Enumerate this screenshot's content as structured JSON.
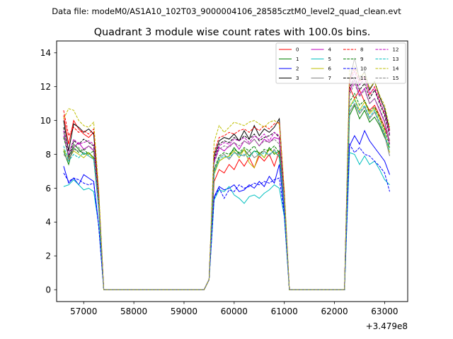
{
  "suptitle": "Data file: modeM0/AS1A10_102T03_9000004106_28585cztM0_level2_quad_clean.evt",
  "chart_data": {
    "type": "line",
    "title": "Quadrant 3 module wise count rates with 100.0s bins.",
    "xlabel": "",
    "ylabel": "",
    "x_offset_label": "+3.479e8",
    "xlim": [
      56460,
      63460
    ],
    "ylim": [
      -0.7,
      14.7
    ],
    "xticks": [
      57000,
      58000,
      59000,
      60000,
      61000,
      62000,
      63000
    ],
    "yticks": [
      0,
      2,
      4,
      6,
      8,
      10,
      12,
      14
    ],
    "legend_position": "top-right",
    "segments": [
      {
        "start": 56600,
        "n": 7
      },
      {
        "start": 57300,
        "n": 1
      },
      {
        "start": 57400,
        "n": 21
      },
      {
        "start": 59500,
        "n": 2
      },
      {
        "start": 59700,
        "n": 13
      },
      {
        "start": 61000,
        "n": 1
      },
      {
        "start": 61100,
        "n": 12
      },
      {
        "start": 62300,
        "n": 9
      }
    ],
    "series": [
      {
        "name": "0",
        "color": "#ff0000",
        "dash": "solid",
        "on": [
          10.3,
          8.6,
          10.0,
          9.5,
          9.2,
          9.0,
          9.3
        ],
        "dip": 5.5,
        "high2": [
          7.1,
          6.9,
          7.4,
          7.1,
          7.7,
          7.3,
          7.8,
          7.2,
          7.9,
          7.6,
          8.0,
          7.3,
          8.2
        ],
        "fall2": 5.1,
        "high3": [
          12.0,
          11.3,
          11.8,
          11.1,
          10.6,
          10.9,
          10.3,
          9.6,
          8.8
        ]
      },
      {
        "name": "1",
        "color": "#008000",
        "dash": "solid",
        "on": [
          8.2,
          7.4,
          8.6,
          8.3,
          8.0,
          8.1,
          7.8
        ],
        "dip": 4.9,
        "high2": [
          7.6,
          7.8,
          7.9,
          8.4,
          8.0,
          8.3,
          7.9,
          8.2,
          8.1,
          7.8,
          8.4,
          8.0,
          8.2
        ],
        "fall2": 5.0,
        "high3": [
          10.3,
          10.9,
          10.1,
          10.6,
          9.9,
          10.2,
          9.7,
          9.0,
          8.4
        ]
      },
      {
        "name": "2",
        "color": "#0000ff",
        "dash": "solid",
        "on": [
          7.3,
          6.3,
          6.6,
          6.2,
          6.8,
          6.6,
          6.4
        ],
        "dip": 3.8,
        "high2": [
          6.1,
          5.9,
          6.0,
          6.2,
          5.8,
          5.9,
          6.2,
          6.0,
          6.4,
          6.1,
          6.7,
          6.3,
          7.4
        ],
        "fall2": 4.6,
        "high3": [
          8.5,
          9.1,
          8.6,
          9.4,
          8.8,
          8.4,
          8.0,
          7.6,
          6.8
        ]
      },
      {
        "name": "3",
        "color": "#000000",
        "dash": "solid",
        "on": [
          10.0,
          8.2,
          9.8,
          9.6,
          9.3,
          9.5,
          9.2
        ],
        "dip": 5.6,
        "high2": [
          8.8,
          9.0,
          8.9,
          9.2,
          8.8,
          9.4,
          8.9,
          9.7,
          9.1,
          9.5,
          9.3,
          9.6,
          10.1
        ],
        "fall2": 5.6,
        "high3": [
          12.3,
          13.7,
          12.4,
          12.9,
          11.8,
          12.3,
          11.4,
          10.7,
          9.4
        ]
      },
      {
        "name": "4",
        "color": "#bf00bf",
        "dash": "solid",
        "on": [
          9.1,
          7.9,
          8.4,
          8.7,
          8.3,
          8.5,
          8.2
        ],
        "dip": 5.0,
        "high2": [
          8.4,
          8.2,
          8.5,
          8.7,
          8.3,
          8.8,
          8.6,
          8.9,
          8.5,
          8.9,
          8.7,
          9.0,
          8.9
        ],
        "fall2": 5.2,
        "high3": [
          11.7,
          12.4,
          11.5,
          11.9,
          11.0,
          11.3,
          10.6,
          9.9,
          8.6
        ]
      },
      {
        "name": "5",
        "color": "#00bfbf",
        "dash": "solid",
        "on": [
          6.1,
          6.2,
          6.5,
          6.2,
          5.9,
          6.0,
          5.8
        ],
        "dip": 3.8,
        "high2": [
          5.9,
          5.8,
          6.1,
          5.6,
          5.4,
          5.1,
          5.5,
          5.6,
          5.4,
          5.7,
          5.9,
          6.2,
          6.0
        ],
        "fall2": 4.3,
        "high3": [
          8.1,
          8.0,
          7.4,
          7.9,
          7.4,
          7.6,
          7.1,
          6.5,
          6.2
        ]
      },
      {
        "name": "6",
        "color": "#bfbf00",
        "dash": "solid",
        "on": [
          8.3,
          7.7,
          8.2,
          8.0,
          7.8,
          8.1,
          7.7
        ],
        "dip": 4.9,
        "high2": [
          7.6,
          7.8,
          7.9,
          8.2,
          7.8,
          8.3,
          7.5,
          7.2,
          8.1,
          7.8,
          8.3,
          8.1,
          7.9
        ],
        "fall2": 5.0,
        "high3": [
          10.8,
          11.3,
          10.6,
          11.1,
          10.4,
          10.7,
          10.1,
          9.3,
          8.1
        ]
      },
      {
        "name": "7",
        "color": "#808080",
        "dash": "solid",
        "on": [
          8.0,
          7.6,
          8.3,
          8.2,
          8.1,
          7.9,
          7.7
        ],
        "dip": 4.8,
        "high2": [
          7.8,
          8.0,
          7.7,
          8.1,
          8.0,
          7.9,
          8.2,
          7.8,
          8.0,
          8.2,
          7.9,
          8.3,
          7.8
        ],
        "fall2": 5.0,
        "high3": [
          10.5,
          11.0,
          10.4,
          10.8,
          10.1,
          10.5,
          9.8,
          9.1,
          7.9
        ]
      },
      {
        "name": "8",
        "color": "#ff0000",
        "dash": "dashed",
        "on": [
          10.6,
          9.1,
          9.6,
          9.3,
          9.4,
          9.2,
          9.5
        ],
        "dip": 5.7,
        "high2": [
          9.0,
          9.1,
          9.3,
          9.2,
          9.4,
          9.5,
          9.3,
          9.6,
          9.4,
          9.7,
          9.5,
          9.8,
          9.9
        ],
        "fall2": 5.8,
        "high3": [
          12.4,
          13.1,
          12.3,
          12.6,
          11.5,
          12.0,
          11.2,
          10.4,
          9.4
        ]
      },
      {
        "name": "9",
        "color": "#008000",
        "dash": "dashed",
        "on": [
          9.0,
          7.9,
          8.4,
          8.1,
          8.3,
          8.0,
          8.2
        ],
        "dip": 5.0,
        "high2": [
          7.9,
          8.1,
          8.0,
          8.3,
          8.1,
          8.4,
          8.2,
          8.5,
          8.0,
          8.3,
          8.2,
          8.5,
          8.1
        ],
        "fall2": 5.2,
        "high3": [
          11.1,
          11.6,
          10.9,
          11.2,
          10.5,
          10.8,
          10.2,
          9.5,
          8.5
        ]
      },
      {
        "name": "10",
        "color": "#0000ff",
        "dash": "dashed",
        "on": [
          6.9,
          6.4,
          6.6,
          6.5,
          6.3,
          6.2,
          6.3
        ],
        "dip": 3.7,
        "high2": [
          6.0,
          5.4,
          5.9,
          5.8,
          6.2,
          6.0,
          6.1,
          6.3,
          6.2,
          6.4,
          6.3,
          6.5,
          6.6
        ],
        "fall2": 4.4,
        "high3": [
          8.6,
          8.1,
          8.4,
          8.0,
          7.9,
          7.6,
          7.3,
          6.9,
          5.8
        ]
      },
      {
        "name": "11",
        "color": "#000000",
        "dash": "dashed",
        "on": [
          9.6,
          7.8,
          8.8,
          8.6,
          8.9,
          8.7,
          8.5
        ],
        "dip": 5.2,
        "high2": [
          8.6,
          8.8,
          8.7,
          9.0,
          8.8,
          9.1,
          8.9,
          9.2,
          8.8,
          9.0,
          9.1,
          9.3,
          9.0
        ],
        "fall2": 5.4,
        "high3": [
          11.9,
          12.6,
          11.8,
          12.2,
          11.3,
          11.8,
          11.0,
          10.3,
          9.1
        ]
      },
      {
        "name": "12",
        "color": "#bf00bf",
        "dash": "dashed",
        "on": [
          9.4,
          8.0,
          8.9,
          8.6,
          8.7,
          8.8,
          8.6
        ],
        "dip": 5.3,
        "high2": [
          8.5,
          8.7,
          8.6,
          8.9,
          8.8,
          9.0,
          8.7,
          9.1,
          8.9,
          9.2,
          8.8,
          9.3,
          9.1
        ],
        "fall2": 5.4,
        "high3": [
          12.2,
          12.9,
          12.1,
          12.5,
          11.6,
          11.9,
          11.1,
          10.5,
          9.2
        ]
      },
      {
        "name": "13",
        "color": "#00bfbf",
        "dash": "dashed",
        "on": [
          8.5,
          7.6,
          8.0,
          7.8,
          8.1,
          7.9,
          7.7
        ],
        "dip": 4.8,
        "high2": [
          7.7,
          7.9,
          7.8,
          8.1,
          7.9,
          8.0,
          7.8,
          8.2,
          7.9,
          8.1,
          8.0,
          8.2,
          7.9
        ],
        "fall2": 5.0,
        "high3": [
          10.7,
          11.2,
          10.5,
          10.9,
          10.2,
          10.6,
          9.9,
          9.2,
          8.2
        ]
      },
      {
        "name": "14",
        "color": "#bfbf00",
        "dash": "dashed",
        "on": [
          10.1,
          10.7,
          10.6,
          10.0,
          9.7,
          9.6,
          9.9
        ],
        "dip": 5.9,
        "high2": [
          9.7,
          9.3,
          9.6,
          9.9,
          9.8,
          9.7,
          9.9,
          10.0,
          9.8,
          9.6,
          9.9,
          10.0,
          9.8
        ],
        "fall2": 5.9,
        "high3": [
          13.0,
          13.2,
          12.6,
          12.8,
          11.9,
          12.3,
          11.5,
          10.9,
          9.6
        ]
      },
      {
        "name": "15",
        "color": "#808080",
        "dash": "dashed",
        "on": [
          9.3,
          7.7,
          8.6,
          8.4,
          8.2,
          8.5,
          8.3
        ],
        "dip": 5.1,
        "high2": [
          8.3,
          8.5,
          8.4,
          8.7,
          8.5,
          8.8,
          8.6,
          8.9,
          8.5,
          8.8,
          8.7,
          8.9,
          8.6
        ],
        "fall2": 5.3,
        "high3": [
          11.5,
          12.2,
          11.4,
          11.8,
          11.0,
          11.3,
          10.7,
          10.0,
          8.8
        ]
      }
    ]
  }
}
